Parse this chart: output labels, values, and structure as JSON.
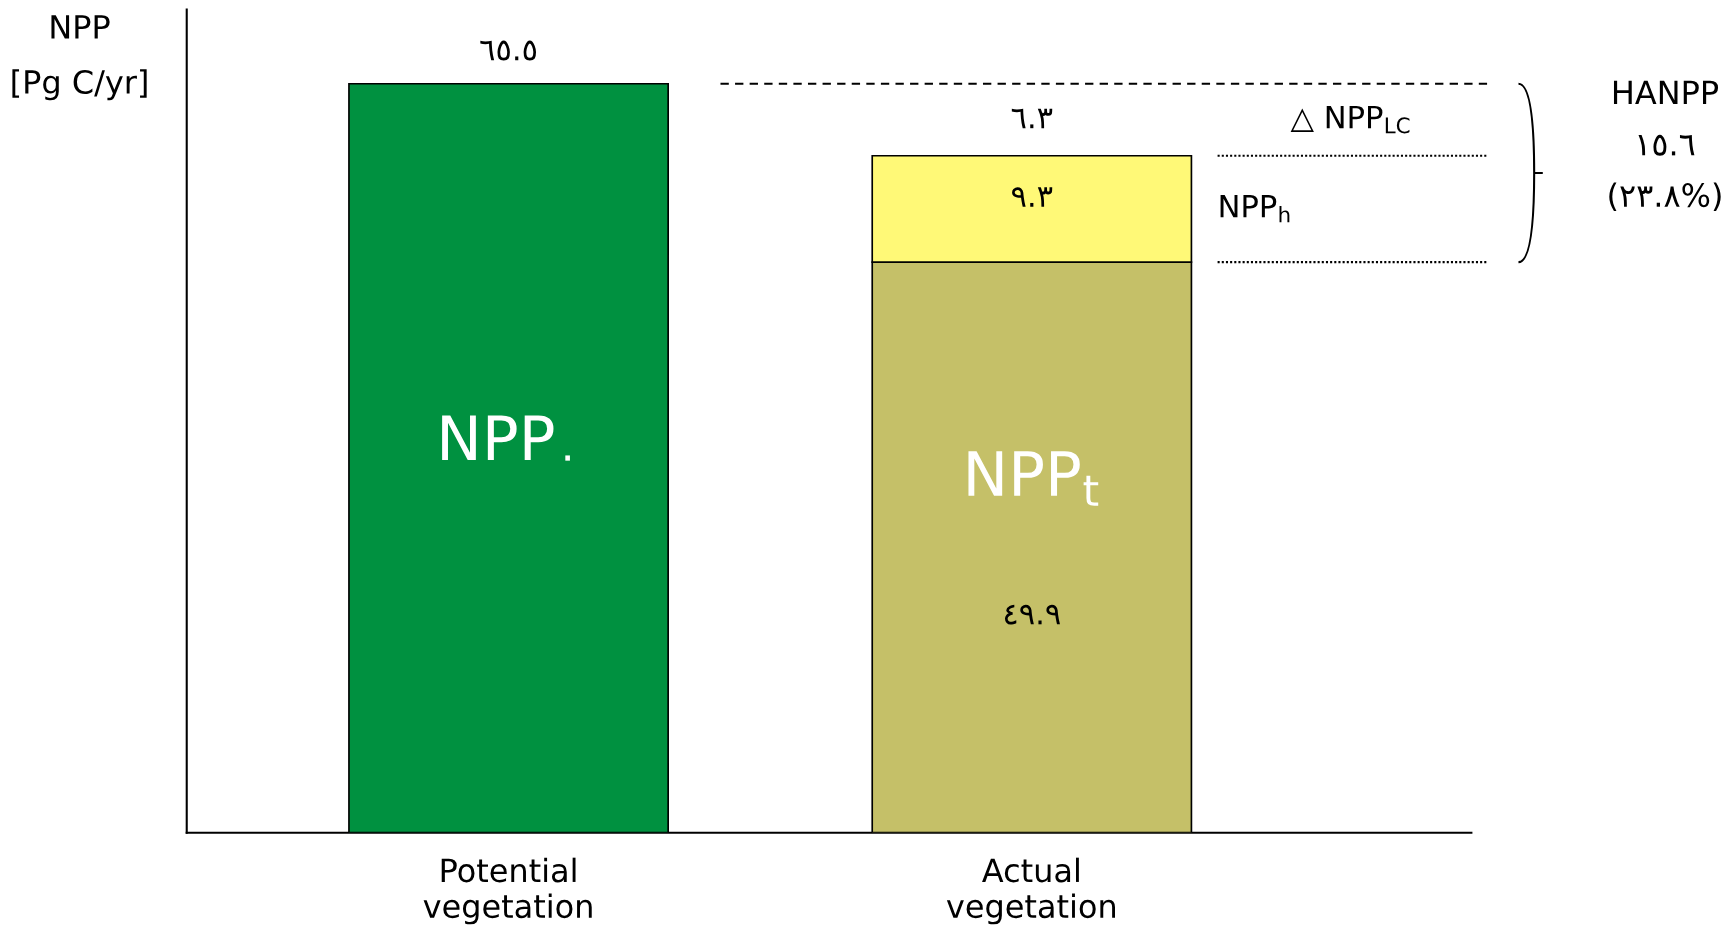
{
  "chart_data": {
    "type": "bar",
    "stacked": true,
    "ylabel": "NPP\n[Pg C/yr]",
    "categories": [
      "Potential\nvegetation",
      "Actual\nvegetation"
    ],
    "series": [
      {
        "name": "NPP$_{٠}$",
        "color": "#009140",
        "values": [
          65.5,
          null
        ],
        "value_labels": [
          "٦٥.٥",
          null
        ]
      },
      {
        "name": "NPP$_{t}$",
        "color": "#c5c068",
        "values": [
          null,
          49.9
        ],
        "value_labels": [
          null,
          "٤٩.٩"
        ]
      },
      {
        "name": "NPP$_{h}$",
        "color": "#fff977",
        "values": [
          null,
          9.3
        ],
        "value_labels": [
          null,
          "٩.٣"
        ]
      }
    ],
    "ylim": [
      0,
      72
    ],
    "ref_lines": [
      {
        "axis": "y",
        "value": 65.5,
        "line_style": "dashed",
        "color": "#000000"
      },
      {
        "axis": "y",
        "value": 59.2,
        "line_style": "dotted",
        "color": "#000000"
      },
      {
        "axis": "y",
        "value": 49.9,
        "line_style": "dotted",
        "color": "#000000"
      }
    ],
    "annotations": [
      "٦.٣",
      "△ NPP$_{LC}$",
      "HANPP",
      "١٥.٦",
      "(٢٣.٨%)"
    ]
  }
}
